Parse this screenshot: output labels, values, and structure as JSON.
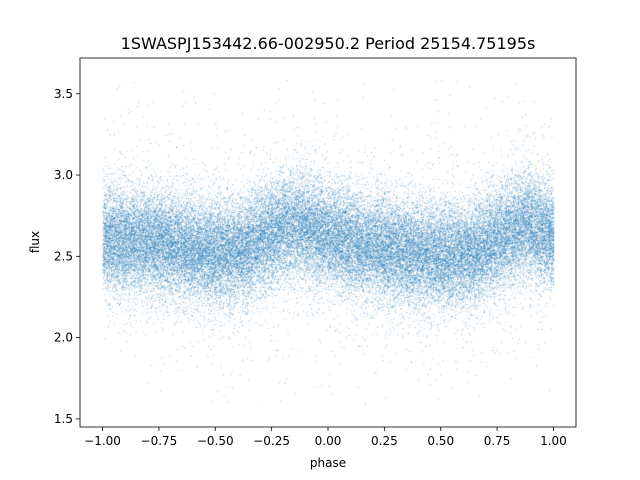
{
  "chart_data": {
    "type": "scatter",
    "title": "1SWASPJ153442.66-002950.2 Period 25154.75195s",
    "xlabel": "phase",
    "ylabel": "flux",
    "xlim": [
      -1.1,
      1.1
    ],
    "ylim": [
      1.45,
      3.72
    ],
    "x_ticks": [
      -1.0,
      -0.75,
      -0.5,
      -0.25,
      0.0,
      0.25,
      0.5,
      0.75,
      1.0
    ],
    "x_tick_labels": [
      "−1.00",
      "−0.75",
      "−0.50",
      "−0.25",
      "0.00",
      "0.25",
      "0.50",
      "0.75",
      "1.00"
    ],
    "y_ticks": [
      1.5,
      2.0,
      2.5,
      3.0,
      3.5
    ],
    "y_tick_labels": [
      "1.5",
      "2.0",
      "2.5",
      "3.0",
      "3.5"
    ],
    "grid": false,
    "marker_color": "#1f77b4",
    "phase_range": [
      -1.0,
      1.0
    ],
    "series": [
      {
        "x": [
          -1.0,
          -0.875,
          -0.75,
          -0.625,
          -0.5,
          -0.375,
          -0.25,
          -0.125,
          0.0,
          0.125,
          0.25,
          0.375,
          0.5,
          0.625,
          0.75,
          0.875,
          1.0
        ],
        "y": [
          2.6,
          2.6,
          2.58,
          2.55,
          2.52,
          2.54,
          2.65,
          2.7,
          2.62,
          2.58,
          2.55,
          2.52,
          2.5,
          2.52,
          2.6,
          2.7,
          2.62
        ]
      }
    ]
  }
}
